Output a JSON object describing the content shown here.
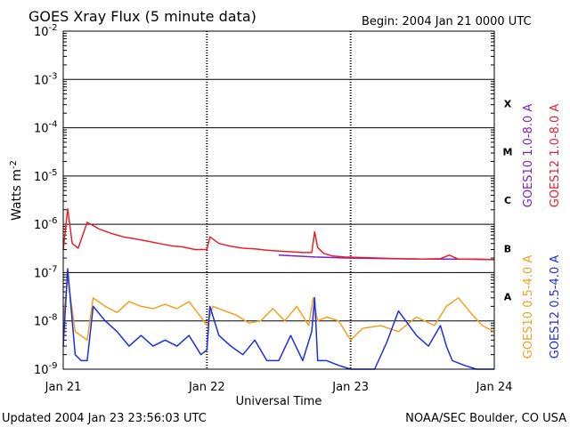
{
  "title": "GOES Xray Flux (5 minute data)",
  "begin_label": "Begin:  2004 Jan 21 0000 UTC",
  "updated_label": "Updated 2004 Jan 23 23:56:03 UTC",
  "credit_label": "NOAA/SEC Boulder, CO USA",
  "colors": {
    "goes10_long": "#7a22c8",
    "goes12_long": "#e8202a",
    "goes10_short": "#f2a020",
    "goes12_short": "#1a2ee8",
    "grid": "#000000",
    "background": "#ffffff"
  },
  "chart_data": {
    "type": "line",
    "title": "GOES Xray Flux (5 minute data)",
    "xlabel": "Universal Time",
    "ylabel": "Watts m",
    "ylabel_exponent": "-2",
    "y_scale": "log",
    "ylim": [
      1e-09,
      0.01
    ],
    "xlim": [
      "2004-01-21 00:00",
      "2004-01-24 00:00"
    ],
    "x_ticks": [
      {
        "x": "2004-01-21 00:00",
        "label": "Jan 21"
      },
      {
        "x": "2004-01-22 00:00",
        "label": "Jan 22"
      },
      {
        "x": "2004-01-23 00:00",
        "label": "Jan 23"
      },
      {
        "x": "2004-01-24 00:00",
        "label": "Jan 24"
      }
    ],
    "y_ticks": [
      {
        "value": 0.01,
        "base": "10",
        "exp": "-2"
      },
      {
        "value": 0.001,
        "base": "10",
        "exp": "-3"
      },
      {
        "value": 0.0001,
        "base": "10",
        "exp": "-4"
      },
      {
        "value": 1e-05,
        "base": "10",
        "exp": "-5"
      },
      {
        "value": 1e-06,
        "base": "10",
        "exp": "-6"
      },
      {
        "value": 1e-07,
        "base": "10",
        "exp": "-7"
      },
      {
        "value": 1e-08,
        "base": "10",
        "exp": "-8"
      },
      {
        "value": 1e-09,
        "base": "10",
        "exp": "-9"
      }
    ],
    "flare_classes": [
      {
        "label": "X",
        "lower": 0.0001
      },
      {
        "label": "M",
        "lower": 1e-05
      },
      {
        "label": "C",
        "lower": 1e-06
      },
      {
        "label": "B",
        "lower": 1e-07
      },
      {
        "label": "A",
        "lower": 1e-08
      }
    ],
    "grid": true,
    "legend": [
      {
        "name": "GOES10 1.0-8.0 A",
        "color": "#7a22c8"
      },
      {
        "name": "GOES12 1.0-8.0 A",
        "color": "#e8202a"
      },
      {
        "name": "GOES10 0.5-4.0 A",
        "color": "#f2a020"
      },
      {
        "name": "GOES12 0.5-4.0 A",
        "color": "#1a2ee8"
      }
    ],
    "legend_position": "right",
    "series": [
      {
        "name": "GOES10 1.0-8.0 A",
        "color": "#7a22c8",
        "x": [
          "2004-01-22 12:00",
          "2004-01-22 18:00",
          "2004-01-23 00:00",
          "2004-01-23 06:00",
          "2004-01-23 12:00",
          "2004-01-23 18:00",
          "2004-01-24 00:00"
        ],
        "y": [
          2.3e-07,
          2.1e-07,
          2e-07,
          1.95e-07,
          1.9e-07,
          1.9e-07,
          1.85e-07
        ]
      },
      {
        "name": "GOES12 1.0-8.0 A",
        "color": "#e8202a",
        "x": [
          "2004-01-21 00:00",
          "2004-01-21 00:45",
          "2004-01-21 01:30",
          "2004-01-21 02:30",
          "2004-01-21 04:00",
          "2004-01-21 06:00",
          "2004-01-21 08:00",
          "2004-01-21 10:00",
          "2004-01-21 12:00",
          "2004-01-21 14:00",
          "2004-01-21 16:00",
          "2004-01-21 18:00",
          "2004-01-21 20:00",
          "2004-01-21 22:00",
          "2004-01-22 00:00",
          "2004-01-22 00:30",
          "2004-01-22 02:00",
          "2004-01-22 04:00",
          "2004-01-22 06:00",
          "2004-01-22 08:00",
          "2004-01-22 10:00",
          "2004-01-22 12:00",
          "2004-01-22 14:00",
          "2004-01-22 16:00",
          "2004-01-22 17:30",
          "2004-01-22 18:00",
          "2004-01-22 18:30",
          "2004-01-22 19:30",
          "2004-01-22 21:00",
          "2004-01-22 23:00",
          "2004-01-23 02:00",
          "2004-01-23 05:00",
          "2004-01-23 08:00",
          "2004-01-23 12:00",
          "2004-01-23 15:00",
          "2004-01-23 16:30",
          "2004-01-23 18:00",
          "2004-01-23 21:00",
          "2004-01-24 00:00"
        ],
        "y": [
          3e-07,
          2.1e-06,
          4e-07,
          3.2e-07,
          1.1e-06,
          8e-07,
          6.5e-07,
          5.5e-07,
          5e-07,
          4.5e-07,
          4e-07,
          3.6e-07,
          3.4e-07,
          3e-07,
          3e-07,
          5.5e-07,
          4e-07,
          3.5e-07,
          3.2e-07,
          3.1e-07,
          2.9e-07,
          2.8e-07,
          2.7e-07,
          2.6e-07,
          2.6e-07,
          7e-07,
          3.3e-07,
          2.5e-07,
          2.2e-07,
          2.1e-07,
          2.05e-07,
          2e-07,
          1.95e-07,
          1.9e-07,
          1.95e-07,
          2.3e-07,
          1.9e-07,
          1.9e-07,
          1.85e-07
        ]
      },
      {
        "name": "GOES10 0.5-4.0 A",
        "color": "#f2a020",
        "x": [
          "2004-01-21 00:00",
          "2004-01-21 00:45",
          "2004-01-21 02:00",
          "2004-01-21 04:00",
          "2004-01-21 05:00",
          "2004-01-21 07:00",
          "2004-01-21 09:00",
          "2004-01-21 11:00",
          "2004-01-21 13:00",
          "2004-01-21 15:00",
          "2004-01-21 17:00",
          "2004-01-21 19:00",
          "2004-01-21 21:00",
          "2004-01-21 23:00",
          "2004-01-22 00:00",
          "2004-01-22 01:00",
          "2004-01-22 03:00",
          "2004-01-22 05:00",
          "2004-01-22 07:00",
          "2004-01-22 09:00",
          "2004-01-22 11:00",
          "2004-01-22 13:00",
          "2004-01-22 15:00",
          "2004-01-22 17:00",
          "2004-01-22 17:45",
          "2004-01-22 18:30",
          "2004-01-22 20:00",
          "2004-01-22 22:00",
          "2004-01-23 00:00",
          "2004-01-23 02:00",
          "2004-01-23 05:00",
          "2004-01-23 08:00",
          "2004-01-23 11:00",
          "2004-01-23 14:00",
          "2004-01-23 16:00",
          "2004-01-23 18:00",
          "2004-01-23 20:00",
          "2004-01-23 22:00",
          "2004-01-24 00:00"
        ],
        "y": [
          1e-08,
          8e-08,
          6e-09,
          4e-09,
          3e-08,
          2e-08,
          1.5e-08,
          2.5e-08,
          2e-08,
          1.8e-08,
          2.2e-08,
          1.8e-08,
          2.5e-08,
          1.2e-08,
          8e-09,
          2e-08,
          1.6e-08,
          1.3e-08,
          9e-09,
          1e-08,
          1.8e-08,
          1e-08,
          2e-08,
          8e-09,
          3e-08,
          1e-08,
          1.2e-08,
          1e-08,
          4e-09,
          7e-09,
          8e-09,
          6e-09,
          1.2e-08,
          8e-09,
          2e-08,
          3e-08,
          1.5e-08,
          8e-09,
          6e-09
        ]
      },
      {
        "name": "GOES12 0.5-4.0 A",
        "color": "#1a2ee8",
        "x": [
          "2004-01-21 00:00",
          "2004-01-21 00:45",
          "2004-01-21 02:00",
          "2004-01-21 03:00",
          "2004-01-21 04:00",
          "2004-01-21 05:00",
          "2004-01-21 07:00",
          "2004-01-21 09:00",
          "2004-01-21 11:00",
          "2004-01-21 13:00",
          "2004-01-21 15:00",
          "2004-01-21 17:00",
          "2004-01-21 19:00",
          "2004-01-21 21:00",
          "2004-01-21 23:00",
          "2004-01-22 00:00",
          "2004-01-22 00:30",
          "2004-01-22 02:00",
          "2004-01-22 04:00",
          "2004-01-22 06:00",
          "2004-01-22 08:00",
          "2004-01-22 10:00",
          "2004-01-22 12:00",
          "2004-01-22 14:00",
          "2004-01-22 16:00",
          "2004-01-22 17:30",
          "2004-01-22 18:00",
          "2004-01-22 18:30",
          "2004-01-22 20:00",
          "2004-01-22 22:00",
          "2004-01-23 00:00",
          "2004-01-23 04:00",
          "2004-01-23 06:00",
          "2004-01-23 08:00",
          "2004-01-23 11:00",
          "2004-01-23 13:00",
          "2004-01-23 15:00",
          "2004-01-23 16:00",
          "2004-01-23 17:00",
          "2004-01-23 19:00",
          "2004-01-23 21:00",
          "2004-01-24 00:00"
        ],
        "y": [
          3e-09,
          1.2e-07,
          2e-09,
          1.5e-09,
          1.5e-09,
          2e-08,
          1e-08,
          6e-09,
          3e-09,
          5e-09,
          3e-09,
          4e-09,
          3e-09,
          5e-09,
          2e-09,
          2.5e-09,
          2e-08,
          5e-09,
          3e-09,
          2e-09,
          4e-09,
          1.5e-09,
          1.5e-09,
          5e-09,
          1.5e-09,
          6e-09,
          3e-08,
          1.5e-09,
          1.5e-09,
          1.2e-09,
          1e-09,
          1e-09,
          3.5e-09,
          1.6e-08,
          5e-09,
          3e-09,
          8e-09,
          3e-09,
          1.5e-09,
          1.2e-09,
          1e-09,
          1e-09
        ]
      }
    ]
  }
}
